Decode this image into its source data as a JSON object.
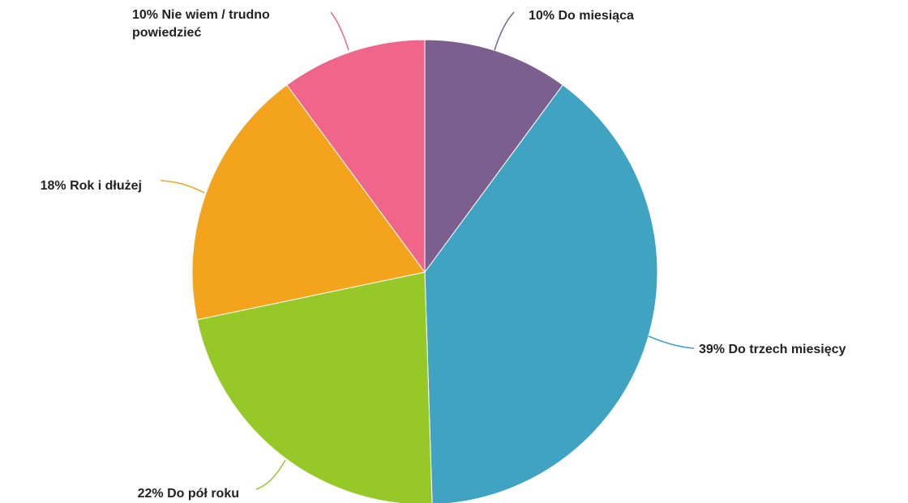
{
  "chart_data": {
    "type": "pie",
    "categories": [
      "Do miesiąca",
      "Do trzech miesięcy",
      "Do pół roku",
      "Rok i dłużej",
      "Nie wiem / trudno powiedzieć"
    ],
    "values": [
      10,
      39,
      22,
      18,
      10
    ],
    "value_labels": [
      "10%",
      "39%",
      "22%",
      "18%",
      "10%"
    ],
    "colors": [
      "#7b5f8e",
      "#40a3c2",
      "#96c928",
      "#f4a41c",
      "#f0668a"
    ]
  }
}
